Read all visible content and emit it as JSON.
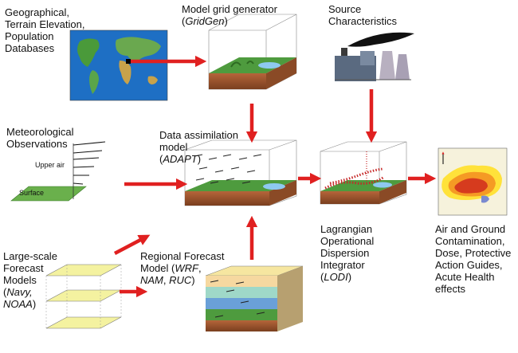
{
  "labels": {
    "geo": [
      "Geographical,",
      "Terrain Elevation,",
      "Population",
      "Databases"
    ],
    "gridgen": {
      "line1": "Model grid generator",
      "open": "(",
      "name": "GridGen",
      "close": ")"
    },
    "source": [
      "Source",
      "Characteristics"
    ],
    "met": [
      "Meteorological",
      "Observations"
    ],
    "upper_air": "Upper air",
    "surface": "Surface",
    "adapt": {
      "line1": "Data assimilation",
      "line2": "model",
      "open": "(",
      "name": "ADAPT",
      "close": ")"
    },
    "lodi": {
      "lines": [
        "Lagrangian",
        "Operational",
        "Dispersion",
        "Integrator"
      ],
      "open": "(",
      "name": "LODI",
      "close": ")"
    },
    "impacts": [
      "Air and Ground",
      "Contamination,",
      "Dose, Protective",
      "Action Guides,",
      "Acute Health",
      "effects"
    ],
    "largescale": {
      "lines": [
        "Large-scale",
        "Forecast",
        "Models"
      ],
      "open": "(",
      "name1": "Navy,",
      "name2": "NOAA",
      "close": ")"
    },
    "regional": {
      "line1": "Regional Forecast",
      "line2_pre": "Model (",
      "wrf": "WRF",
      "line2_post": ",",
      "nam": "NAM",
      "sep": ", ",
      "ruc": "RUC",
      "close": ")"
    }
  },
  "colors": {
    "arrow": "#e02020",
    "map_ocean": "#1e6fc4",
    "terrain": "#5aa54a",
    "soil": "#a0522d"
  },
  "icons": [
    "world-map-icon",
    "grid-box-icon",
    "power-plant-icon",
    "wind-profile-icon",
    "assimilation-box-icon",
    "dispersion-box-icon",
    "contamination-map-icon",
    "forecast-layers-icon",
    "regional-model-box-icon"
  ]
}
